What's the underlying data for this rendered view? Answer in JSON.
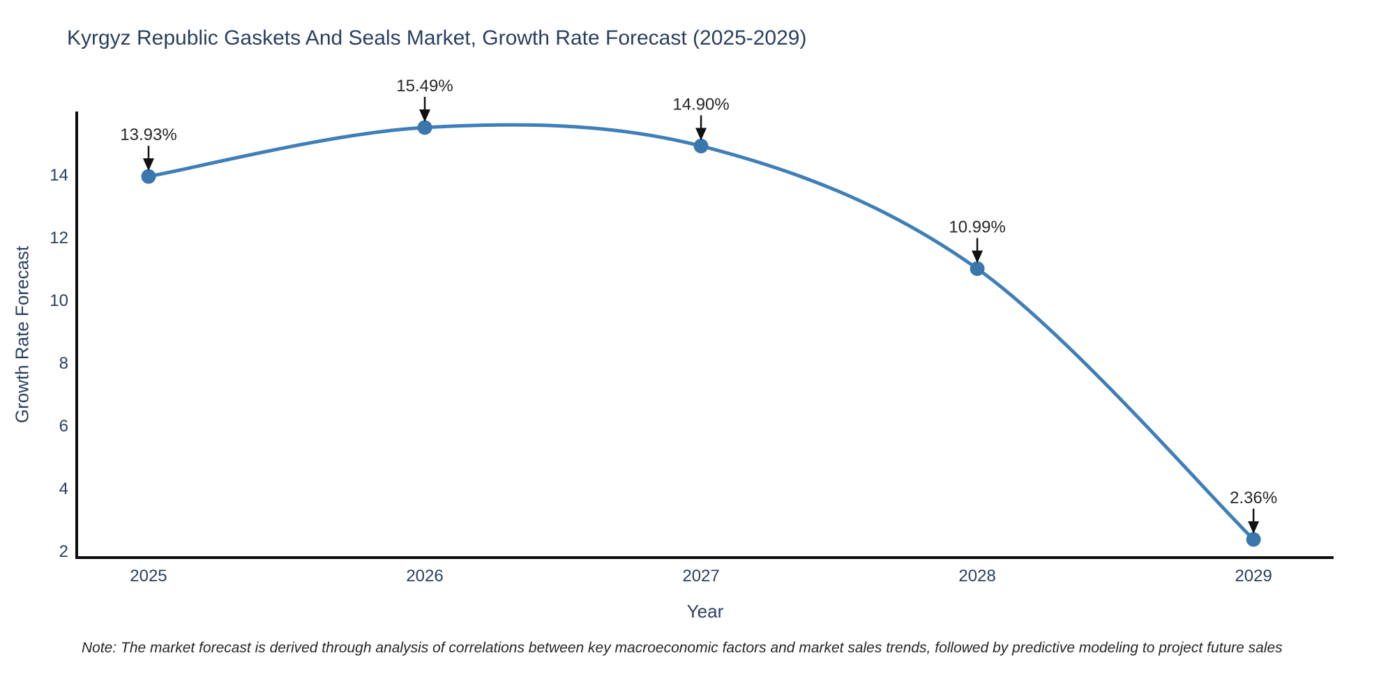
{
  "title": "Kyrgyz Republic Gaskets And Seals Market, Growth Rate Forecast (2025-2029)",
  "note": "Note: The market forecast is derived through analysis of correlations between key macroeconomic factors and market sales trends, followed by predictive modeling to project future sales",
  "colors": {
    "title": "#2a3f5f",
    "tick_label": "#2a3f5f",
    "axis_line": "#0d0d0d",
    "series_line": "#3f7fb8",
    "marker_fill": "#3a77ad",
    "annotation_text": "#262626",
    "arrow": "#111111",
    "background": "#ffffff"
  },
  "chart_data": {
    "type": "line",
    "title": "Kyrgyz Republic Gaskets And Seals Market, Growth Rate Forecast (2025-2029)",
    "xlabel": "Year",
    "ylabel": "Growth Rate Forecast",
    "x": [
      2025,
      2026,
      2027,
      2028,
      2029
    ],
    "series": [
      {
        "name": "Growth Rate Forecast",
        "values": [
          13.93,
          15.49,
          14.9,
          10.99,
          2.36
        ]
      }
    ],
    "point_labels": [
      "13.93%",
      "15.49%",
      "14.90%",
      "10.99%",
      "2.36%"
    ],
    "xticks": [
      "2025",
      "2026",
      "2027",
      "2028",
      "2029"
    ],
    "xtick_values": [
      2025,
      2026,
      2027,
      2028,
      2029
    ],
    "yticks": [
      "2",
      "4",
      "6",
      "8",
      "10",
      "12",
      "14"
    ],
    "ytick_values": [
      2,
      4,
      6,
      8,
      10,
      12,
      14
    ],
    "xlim": [
      2024.74,
      2029.29
    ],
    "ylim": [
      1.78,
      16.0
    ],
    "line_shape": "spline",
    "grid": false,
    "legend_position": "none",
    "annotations_have_arrows": true
  }
}
